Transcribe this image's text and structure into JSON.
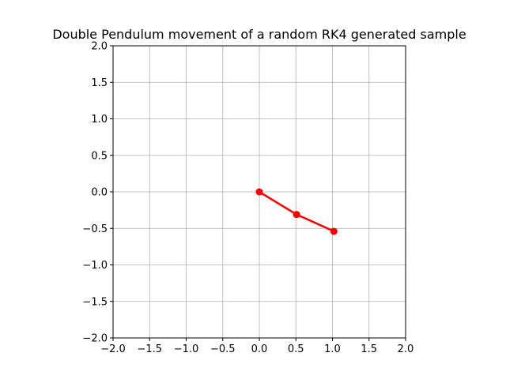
{
  "chart_data": {
    "type": "line",
    "title": "Double Pendulum movement of a random RK4 generated sample",
    "xlabel": "",
    "ylabel": "",
    "xlim": [
      -2.0,
      2.0
    ],
    "ylim": [
      -2.0,
      2.0
    ],
    "xticks": [
      -2.0,
      -1.5,
      -1.0,
      -0.5,
      0.0,
      0.5,
      1.0,
      1.5,
      2.0
    ],
    "yticks": [
      -2.0,
      -1.5,
      -1.0,
      -0.5,
      0.0,
      0.5,
      1.0,
      1.5,
      2.0
    ],
    "xtick_labels": [
      "−2.0",
      "−1.5",
      "−1.0",
      "−0.5",
      "0.0",
      "0.5",
      "1.0",
      "1.5",
      "2.0"
    ],
    "ytick_labels": [
      "−2.0",
      "−1.5",
      "−1.0",
      "−0.5",
      "0.0",
      "0.5",
      "1.0",
      "1.5",
      "2.0"
    ],
    "grid": true,
    "aspect": "equal",
    "series": [
      {
        "x": [
          0.0,
          0.51,
          1.02
        ],
        "y": [
          0.0,
          -0.31,
          -0.54
        ],
        "color": "#ff0000",
        "marker": "circle"
      }
    ]
  }
}
